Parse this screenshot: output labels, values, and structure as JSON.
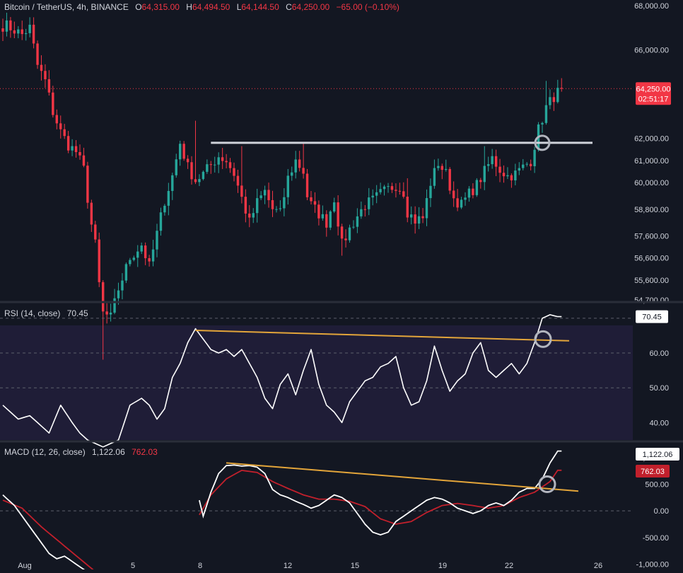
{
  "header": {
    "symbol": "Bitcoin / TetherUS, 4h, BINANCE",
    "o_label": "O",
    "o_value": "64,315.00",
    "h_label": "H",
    "h_value": "64,494.50",
    "l_label": "L",
    "l_value": "64,144.50",
    "c_label": "C",
    "c_value": "64,250.00",
    "change": "−65.00 (−0.10%)"
  },
  "rsi_legend": {
    "name": "RSI (14, close)",
    "value": "70.45"
  },
  "macd_legend": {
    "name": "MACD (12, 26, close)",
    "macd": "1,122.06",
    "signal": "762.03"
  },
  "colors": {
    "background": "#131722",
    "up": "#26a69a",
    "down": "#f23645",
    "text": "#d1d4dc",
    "trendline": "#e3a53a",
    "signal": "#c2202c"
  },
  "chart_data": [
    {
      "type": "candlestick",
      "pane": "price",
      "ylim": [
        54700,
        68000
      ],
      "y_ticks": [
        "68,000.00",
        "66,000.00",
        "62,000.00",
        "61,000.00",
        "60,000.00",
        "58,800.00",
        "57,600.00",
        "56,600.00",
        "55,600.00",
        "54,700.00"
      ],
      "x_ticks": [
        "Aug",
        "5",
        "8",
        "12",
        "15",
        "19",
        "22",
        "26"
      ],
      "last_price": "64,250.00",
      "countdown": "02:51:17",
      "resistance_level": 61800,
      "anchors_price": [
        [
          1,
          67100
        ],
        [
          3,
          66900
        ],
        [
          5,
          66700
        ],
        [
          7,
          67000
        ],
        [
          9,
          65300
        ],
        [
          11,
          64600
        ],
        [
          13,
          63200
        ],
        [
          15,
          62300
        ],
        [
          17,
          61700
        ],
        [
          19,
          61400
        ],
        [
          21,
          60600
        ],
        [
          22,
          59300
        ],
        [
          23,
          58100
        ],
        [
          24,
          57200
        ],
        [
          25,
          55400
        ],
        [
          26,
          54100
        ],
        [
          28,
          53900
        ],
        [
          30,
          55200
        ],
        [
          33,
          56600
        ],
        [
          36,
          57200
        ],
        [
          38,
          56200
        ],
        [
          40,
          57700
        ],
        [
          42,
          59200
        ],
        [
          44,
          60300
        ],
        [
          46,
          61800
        ],
        [
          48,
          60700
        ],
        [
          50,
          60100
        ],
        [
          52,
          60400
        ],
        [
          54,
          60800
        ],
        [
          56,
          61200
        ],
        [
          58,
          61000
        ],
        [
          60,
          60400
        ],
        [
          62,
          59300
        ],
        [
          64,
          58200
        ],
        [
          66,
          59100
        ],
        [
          68,
          59600
        ],
        [
          70,
          58800
        ],
        [
          72,
          58600
        ],
        [
          74,
          60200
        ],
        [
          76,
          61000
        ],
        [
          78,
          60500
        ],
        [
          79,
          59400
        ],
        [
          80,
          59000
        ],
        [
          82,
          58600
        ],
        [
          84,
          58200
        ],
        [
          86,
          59300
        ],
        [
          88,
          57200
        ],
        [
          90,
          57900
        ],
        [
          92,
          58500
        ],
        [
          94,
          59000
        ],
        [
          96,
          59200
        ],
        [
          98,
          59500
        ],
        [
          100,
          59700
        ],
        [
          102,
          59900
        ],
        [
          104,
          59600
        ],
        [
          105,
          58700
        ],
        [
          107,
          58300
        ],
        [
          109,
          58400
        ],
        [
          111,
          60000
        ],
        [
          113,
          60900
        ],
        [
          115,
          60400
        ],
        [
          117,
          59300
        ],
        [
          119,
          59000
        ],
        [
          121,
          59500
        ],
        [
          123,
          59900
        ],
        [
          125,
          60500
        ],
        [
          127,
          61100
        ],
        [
          129,
          60600
        ],
        [
          131,
          60300
        ],
        [
          133,
          60400
        ],
        [
          135,
          60700
        ],
        [
          137,
          61000
        ],
        [
          139,
          62400
        ],
        [
          141,
          63400
        ],
        [
          143,
          63900
        ],
        [
          145,
          64250
        ]
      ],
      "pivot_highs": [
        [
          50,
          62800
        ],
        [
          62,
          61650
        ],
        [
          78,
          61800
        ],
        [
          105,
          60200
        ],
        [
          125,
          61650
        ],
        [
          141,
          64600
        ]
      ],
      "pivot_lows": [
        [
          26,
          52000
        ],
        [
          88,
          56700
        ],
        [
          107,
          57700
        ]
      ]
    },
    {
      "type": "line",
      "pane": "rsi",
      "ylim": [
        35,
        72
      ],
      "y_ticks": [
        "60.00",
        "50.00",
        "40.00"
      ],
      "value": 70.45,
      "anchors": [
        [
          0,
          45
        ],
        [
          4,
          41
        ],
        [
          7,
          42
        ],
        [
          10,
          39
        ],
        [
          12,
          37
        ],
        [
          15,
          45
        ],
        [
          18,
          40
        ],
        [
          20,
          37
        ],
        [
          22,
          35
        ],
        [
          24,
          34
        ],
        [
          26,
          33
        ],
        [
          28,
          34
        ],
        [
          30,
          35
        ],
        [
          33,
          45
        ],
        [
          36,
          47
        ],
        [
          38,
          45
        ],
        [
          40,
          41
        ],
        [
          42,
          44
        ],
        [
          44,
          53
        ],
        [
          46,
          57
        ],
        [
          48,
          63
        ],
        [
          50,
          67
        ],
        [
          52,
          64
        ],
        [
          54,
          61
        ],
        [
          56,
          60
        ],
        [
          58,
          61
        ],
        [
          60,
          59
        ],
        [
          62,
          61
        ],
        [
          64,
          57
        ],
        [
          66,
          53
        ],
        [
          68,
          47
        ],
        [
          70,
          44
        ],
        [
          72,
          51
        ],
        [
          74,
          54
        ],
        [
          76,
          48
        ],
        [
          78,
          55
        ],
        [
          80,
          61
        ],
        [
          82,
          51
        ],
        [
          84,
          45
        ],
        [
          86,
          43
        ],
        [
          88,
          40
        ],
        [
          90,
          46
        ],
        [
          92,
          49
        ],
        [
          94,
          52
        ],
        [
          96,
          53
        ],
        [
          98,
          56
        ],
        [
          100,
          57
        ],
        [
          102,
          59
        ],
        [
          104,
          50
        ],
        [
          106,
          45
        ],
        [
          108,
          46
        ],
        [
          110,
          52
        ],
        [
          112,
          62
        ],
        [
          114,
          55
        ],
        [
          116,
          49
        ],
        [
          118,
          52
        ],
        [
          120,
          54
        ],
        [
          122,
          60
        ],
        [
          124,
          63
        ],
        [
          126,
          55
        ],
        [
          128,
          53
        ],
        [
          130,
          55
        ],
        [
          132,
          57
        ],
        [
          134,
          54
        ],
        [
          136,
          57
        ],
        [
          138,
          63
        ],
        [
          140,
          70
        ],
        [
          142,
          71
        ],
        [
          144,
          70.45
        ]
      ],
      "trendline": [
        [
          50,
          66.5
        ],
        [
          135,
          63.5
        ]
      ],
      "marker": [
        133,
        64
      ]
    },
    {
      "type": "line",
      "pane": "macd",
      "ylim": [
        -1100,
        1250
      ],
      "y_ticks": [
        "1,000.00",
        "500.00",
        "0.00",
        "-500.00",
        "-1,000.00"
      ],
      "series": [
        {
          "name": "MACD",
          "value": 1122.06,
          "anchors": [
            [
              0,
              300
            ],
            [
              3,
              100
            ],
            [
              6,
              -200
            ],
            [
              9,
              -500
            ],
            [
              12,
              -800
            ],
            [
              14,
              -900
            ],
            [
              16,
              -850
            ],
            [
              18,
              -950
            ],
            [
              20,
              -1050
            ],
            [
              22,
              -1150
            ],
            [
              24,
              -1250
            ],
            [
              26,
              -1400
            ],
            [
              28,
              -1300
            ],
            [
              30,
              -1050
            ],
            [
              32,
              -700
            ],
            [
              34,
              -300
            ],
            [
              36,
              -100
            ],
            [
              38,
              100
            ],
            [
              40,
              300
            ],
            [
              42,
              400
            ],
            [
              44,
              500
            ],
            [
              46,
              550
            ],
            [
              48,
              550
            ],
            [
              50,
              500
            ],
            [
              52,
              -100
            ],
            [
              54,
              350
            ],
            [
              56,
              700
            ],
            [
              58,
              850
            ],
            [
              60,
              860
            ],
            [
              62,
              840
            ],
            [
              64,
              850
            ],
            [
              66,
              820
            ],
            [
              68,
              700
            ],
            [
              70,
              400
            ],
            [
              72,
              300
            ],
            [
              74,
              250
            ],
            [
              76,
              180
            ],
            [
              78,
              120
            ],
            [
              80,
              50
            ],
            [
              82,
              100
            ],
            [
              84,
              200
            ],
            [
              86,
              300
            ],
            [
              88,
              250
            ],
            [
              90,
              150
            ],
            [
              92,
              -50
            ],
            [
              94,
              -250
            ],
            [
              96,
              -400
            ],
            [
              98,
              -450
            ],
            [
              100,
              -400
            ],
            [
              102,
              -200
            ],
            [
              104,
              -100
            ],
            [
              106,
              0
            ],
            [
              108,
              100
            ],
            [
              110,
              200
            ],
            [
              112,
              250
            ],
            [
              114,
              220
            ],
            [
              116,
              150
            ],
            [
              118,
              50
            ],
            [
              120,
              0
            ],
            [
              122,
              -50
            ],
            [
              124,
              0
            ],
            [
              126,
              100
            ],
            [
              128,
              150
            ],
            [
              130,
              100
            ],
            [
              132,
              200
            ],
            [
              134,
              350
            ],
            [
              136,
              420
            ],
            [
              138,
              420
            ],
            [
              140,
              600
            ],
            [
              142,
              900
            ],
            [
              144,
              1122
            ]
          ]
        },
        {
          "name": "Signal",
          "value": 762.03,
          "anchors": [
            [
              0,
              200
            ],
            [
              5,
              50
            ],
            [
              10,
              -300
            ],
            [
              15,
              -600
            ],
            [
              20,
              -900
            ],
            [
              25,
              -1200
            ],
            [
              30,
              -1350
            ],
            [
              35,
              -1250
            ],
            [
              40,
              -900
            ],
            [
              45,
              -500
            ],
            [
              50,
              -200
            ],
            [
              54,
              300
            ],
            [
              58,
              600
            ],
            [
              62,
              760
            ],
            [
              66,
              720
            ],
            [
              70,
              550
            ],
            [
              74,
              420
            ],
            [
              78,
              300
            ],
            [
              82,
              220
            ],
            [
              86,
              220
            ],
            [
              90,
              180
            ],
            [
              94,
              80
            ],
            [
              98,
              -150
            ],
            [
              102,
              -250
            ],
            [
              106,
              -200
            ],
            [
              110,
              -30
            ],
            [
              114,
              100
            ],
            [
              118,
              140
            ],
            [
              122,
              100
            ],
            [
              126,
              50
            ],
            [
              130,
              100
            ],
            [
              134,
              250
            ],
            [
              138,
              350
            ],
            [
              142,
              550
            ],
            [
              144,
              762
            ]
          ]
        }
      ],
      "trendline": [
        [
          52,
          900
        ],
        [
          137,
          370
        ]
      ],
      "marker": [
        133,
        500
      ]
    }
  ]
}
